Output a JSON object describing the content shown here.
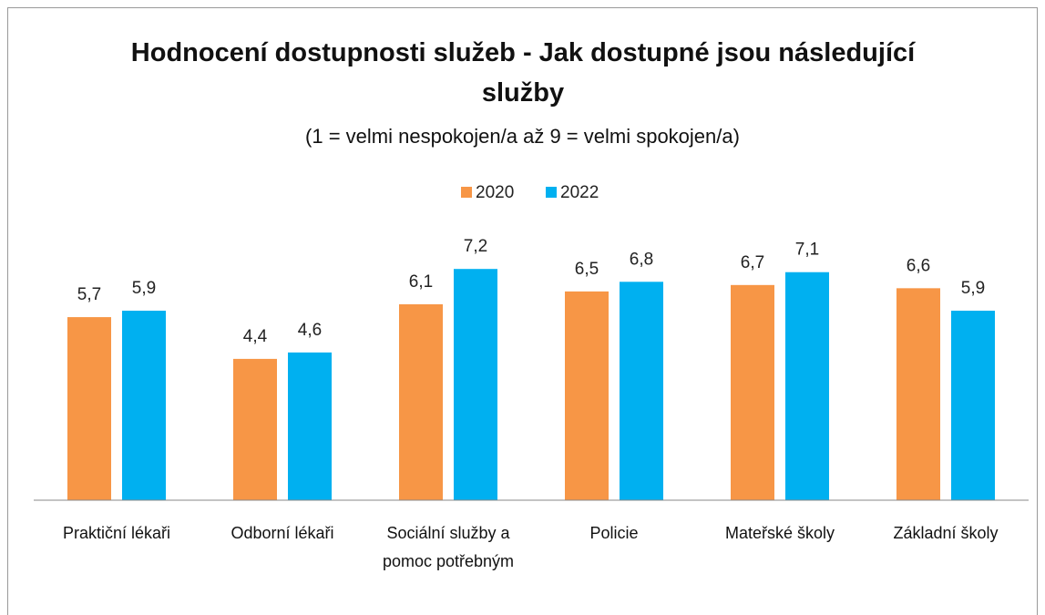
{
  "chart_data": {
    "type": "bar",
    "title": "Hodnocení dostupnosti služeb - Jak dostupné jsou následující služby",
    "subtitle": "(1 = velmi nespokojen/a až 9 = velmi spokojen/a)",
    "categories": [
      "Praktiční lékaři",
      "Odborní lékaři",
      "Sociální služby a pomoc potřebným",
      "Policie",
      "Mateřské školy",
      "Základní školy"
    ],
    "series": [
      {
        "name": "2020",
        "color": "#f79646",
        "values": [
          5.7,
          4.4,
          6.1,
          6.5,
          6.7,
          6.6
        ],
        "value_labels": [
          "5,7",
          "4,4",
          "6,1",
          "6,5",
          "6,7",
          "6,6"
        ]
      },
      {
        "name": "2022",
        "color": "#00b0f0",
        "values": [
          5.9,
          4.6,
          7.2,
          6.8,
          7.1,
          5.9
        ],
        "value_labels": [
          "5,9",
          "4,6",
          "7,2",
          "6,8",
          "7,1",
          "5,9"
        ]
      }
    ],
    "ylim": [
      0,
      8
    ]
  }
}
